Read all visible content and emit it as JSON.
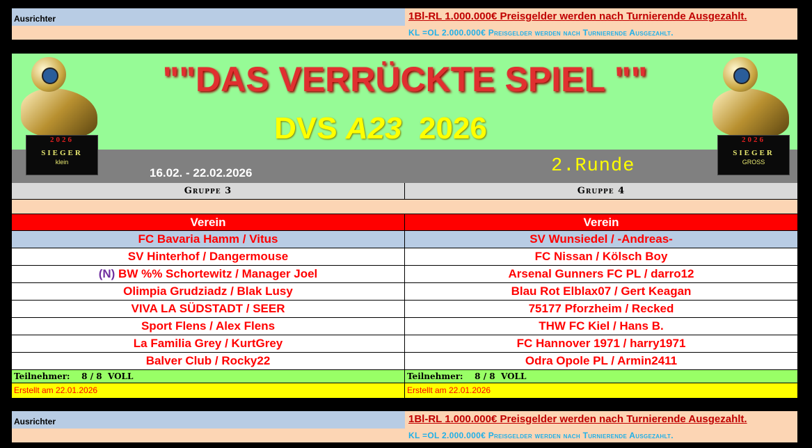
{
  "banner": {
    "ausrichter": "Ausrichter",
    "prize_1bl": "1Bl-RL  1.000.000€ Preisgelder werden nach Turnierende Ausgezahlt.",
    "prize_kl": "KL =OL  2.000.000€ Preisgelder werden nach Turnierende Ausgezahlt."
  },
  "header": {
    "title": "\"\"DAS VERRÜCKTE SPIEL \"\"",
    "sub_prefix": "DVS ",
    "sub_code": "A23",
    "sub_year": "  2026",
    "dates": "16.02. - 22.02.2026",
    "round": "2.Runde",
    "trophy_left": {
      "year": "2026",
      "label": "SIEGER",
      "size": "klein"
    },
    "trophy_right": {
      "year": "2026",
      "label": "SIEGER",
      "size": "GROSS"
    }
  },
  "groups": [
    {
      "name": "Gruppe 3",
      "column_header": "Verein",
      "teams": [
        {
          "prefix": "",
          "name": "FC Bavaria Hamm / Vitus"
        },
        {
          "prefix": "",
          "name": "SV Hinterhof / Dangermouse"
        },
        {
          "prefix": "(N)",
          "name": " BW %% Schortewitz / Manager Joel"
        },
        {
          "prefix": "",
          "name": "Olimpia Grudziadz / Blak Lusy"
        },
        {
          "prefix": "",
          "name": "VIVA LA SÜDSTADT / SEER"
        },
        {
          "prefix": "",
          "name": "Sport Flens / Alex Flens"
        },
        {
          "prefix": "",
          "name": "La Familia Grey / KurtGrey"
        },
        {
          "prefix": "",
          "name": "Balver Club / Rocky22"
        }
      ],
      "participants": "Teilnehmer:    8 / 8  VOLL",
      "created": "Erstellt am 22.01.2026"
    },
    {
      "name": "Gruppe 4",
      "column_header": "Verein",
      "teams": [
        {
          "prefix": "",
          "name": "SV Wunsiedel / -Andreas-"
        },
        {
          "prefix": "",
          "name": "FC Nissan / Kölsch Boy"
        },
        {
          "prefix": "",
          "name": "Arsenal Gunners FC PL / darro12"
        },
        {
          "prefix": "",
          "name": "Blau Rot Elblax07 / Gert Keagan"
        },
        {
          "prefix": "",
          "name": "75177 Pforzheim / Recked"
        },
        {
          "prefix": "",
          "name": "THW FC Kiel / Hans B."
        },
        {
          "prefix": "",
          "name": "FC Hannover 1971 / harry1971"
        },
        {
          "prefix": "",
          "name": "Odra Opole PL / Armin2411"
        }
      ],
      "participants": "Teilnehmer:    8 / 8  VOLL",
      "created": "Erstellt am 22.01.2026"
    }
  ],
  "colors": {
    "header_red": "#ff0000",
    "banner_blue": "#b8cce4",
    "peach": "#fcd5b4",
    "green": "#99ff66",
    "yellow": "#ffff00",
    "header_bg": "#96fb96"
  }
}
